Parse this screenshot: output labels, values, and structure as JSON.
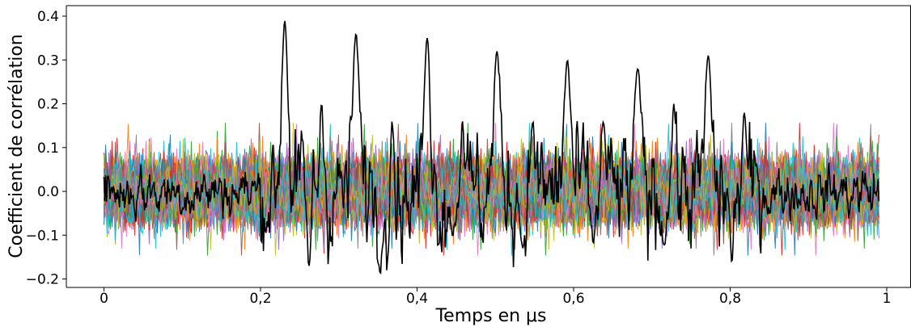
{
  "chart_data": {
    "type": "line",
    "title": "",
    "xlabel": "Temps en μs",
    "ylabel": "Coefficient de corrélation",
    "xlim": [
      -0.05,
      1.03
    ],
    "ylim": [
      -0.22,
      0.42
    ],
    "x_ticks": [
      0,
      0.2,
      0.4,
      0.6,
      0.8,
      1
    ],
    "x_tick_labels": [
      "0",
      "0,2",
      "0,4",
      "0,6",
      "0,8",
      "1"
    ],
    "y_ticks": [
      -0.2,
      -0.1,
      0.0,
      0.1,
      0.2,
      0.3,
      0.4
    ],
    "y_tick_labels": [
      "−0.2",
      "−0.1",
      "0.0",
      "0.1",
      "0.2",
      "0.3",
      "0.4"
    ],
    "grid": false,
    "legend": "none",
    "background_noise": {
      "description": "many overlapping random correlation traces",
      "x_range": [
        0,
        0.99
      ],
      "y_band": [
        -0.12,
        0.12
      ],
      "colors": [
        "#1f77b4",
        "#ff7f0e",
        "#2ca02c",
        "#d62728",
        "#9467bd",
        "#8c564b",
        "#e377c2",
        "#7f7f7f",
        "#bcbd22",
        "#17becf"
      ]
    },
    "highlight_series": {
      "color": "#000000",
      "peaks": [
        {
          "x": 0.231,
          "y": 0.39
        },
        {
          "x": 0.322,
          "y": 0.36
        },
        {
          "x": 0.413,
          "y": 0.35
        },
        {
          "x": 0.502,
          "y": 0.32
        },
        {
          "x": 0.592,
          "y": 0.3
        },
        {
          "x": 0.682,
          "y": 0.28
        },
        {
          "x": 0.772,
          "y": 0.31
        }
      ],
      "secondary_peaks": [
        {
          "x": 0.278,
          "y": 0.2
        },
        {
          "x": 0.368,
          "y": 0.16
        },
        {
          "x": 0.458,
          "y": 0.16
        },
        {
          "x": 0.548,
          "y": 0.16
        },
        {
          "x": 0.638,
          "y": 0.16
        },
        {
          "x": 0.728,
          "y": 0.2
        },
        {
          "x": 0.818,
          "y": 0.18
        }
      ],
      "troughs": [
        {
          "x": 0.262,
          "y": -0.17
        },
        {
          "x": 0.353,
          "y": -0.19
        },
        {
          "x": 0.445,
          "y": -0.1
        },
        {
          "x": 0.535,
          "y": -0.13
        },
        {
          "x": 0.625,
          "y": -0.12
        },
        {
          "x": 0.715,
          "y": -0.12
        },
        {
          "x": 0.802,
          "y": -0.16
        }
      ]
    }
  }
}
